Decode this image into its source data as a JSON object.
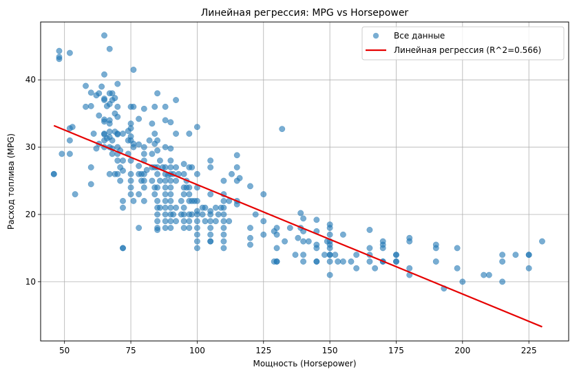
{
  "chart_data": {
    "type": "scatter",
    "title": "Линейная регрессия: MPG vs Horsepower",
    "xlabel": "Мощность (Horsepower)",
    "ylabel": "Расход топлива (MPG)",
    "xlim": [
      41,
      240
    ],
    "ylim": [
      1.2,
      48.6
    ],
    "xticks": [
      50,
      75,
      100,
      125,
      150,
      175,
      200,
      225
    ],
    "yticks": [
      10,
      20,
      30,
      40
    ],
    "grid": true,
    "legend_position": "top-right",
    "series": [
      {
        "name": "Все данные",
        "kind": "scatter",
        "color": "#1f77b4",
        "points": [
          [
            46,
            26
          ],
          [
            46,
            26
          ],
          [
            48,
            43.1
          ],
          [
            48,
            44.3
          ],
          [
            48,
            43.4
          ],
          [
            49,
            29
          ],
          [
            52,
            44
          ],
          [
            52,
            32.8
          ],
          [
            52,
            31
          ],
          [
            52,
            29
          ],
          [
            53,
            33
          ],
          [
            54,
            23
          ],
          [
            58,
            39.1
          ],
          [
            58,
            36
          ],
          [
            60,
            38.1
          ],
          [
            60,
            36.1
          ],
          [
            60,
            27
          ],
          [
            60,
            24.5
          ],
          [
            61,
            32
          ],
          [
            62,
            37.7
          ],
          [
            62,
            29.8
          ],
          [
            63,
            38
          ],
          [
            63,
            34.7
          ],
          [
            63,
            30.5
          ],
          [
            64,
            39
          ],
          [
            65,
            46.6
          ],
          [
            65,
            40.8
          ],
          [
            65,
            37.2
          ],
          [
            65,
            37
          ],
          [
            65,
            34.1
          ],
          [
            65,
            33.8
          ],
          [
            65,
            32
          ],
          [
            65,
            31.9
          ],
          [
            65,
            31
          ],
          [
            65,
            30
          ],
          [
            66,
            36.1
          ],
          [
            66,
            31.3
          ],
          [
            67,
            44.6
          ],
          [
            67,
            38
          ],
          [
            67,
            36.4
          ],
          [
            67,
            34
          ],
          [
            67,
            33.5
          ],
          [
            67,
            32.3
          ],
          [
            67,
            31.5
          ],
          [
            67,
            30
          ],
          [
            67,
            26
          ],
          [
            68,
            38
          ],
          [
            68,
            37
          ],
          [
            68,
            31
          ],
          [
            68,
            29.8
          ],
          [
            68,
            29
          ],
          [
            69,
            37.3
          ],
          [
            69,
            35
          ],
          [
            69,
            32.3
          ],
          [
            69,
            26
          ],
          [
            70,
            39.4
          ],
          [
            70,
            36
          ],
          [
            70,
            34.5
          ],
          [
            70,
            32
          ],
          [
            70,
            31.9
          ],
          [
            70,
            30
          ],
          [
            70,
            29
          ],
          [
            70,
            28
          ],
          [
            70,
            26
          ],
          [
            71,
            29.5
          ],
          [
            71,
            27
          ],
          [
            71,
            25
          ],
          [
            72,
            32
          ],
          [
            72,
            28
          ],
          [
            72,
            26.5
          ],
          [
            72,
            22
          ],
          [
            72,
            21
          ],
          [
            72,
            15
          ],
          [
            72,
            15
          ],
          [
            74,
            32.4
          ],
          [
            74,
            31
          ],
          [
            74,
            29
          ],
          [
            75,
            36
          ],
          [
            75,
            33.5
          ],
          [
            75,
            32.8
          ],
          [
            75,
            31.6
          ],
          [
            75,
            31
          ],
          [
            75,
            28
          ],
          [
            75,
            26
          ],
          [
            75,
            25
          ],
          [
            75,
            24
          ],
          [
            75,
            23
          ],
          [
            76,
            41.5
          ],
          [
            76,
            36
          ],
          [
            76,
            30.5
          ],
          [
            76,
            30
          ],
          [
            76,
            22
          ],
          [
            78,
            34.2
          ],
          [
            78,
            30.4
          ],
          [
            78,
            27.2
          ],
          [
            78,
            26
          ],
          [
            78,
            23
          ],
          [
            78,
            18
          ],
          [
            79,
            26
          ],
          [
            79,
            25
          ],
          [
            80,
            35.7
          ],
          [
            80,
            30
          ],
          [
            80,
            29
          ],
          [
            80,
            28
          ],
          [
            80,
            26
          ],
          [
            80,
            25
          ],
          [
            80,
            24
          ],
          [
            80,
            22
          ],
          [
            81,
            26.6
          ],
          [
            82,
            31
          ],
          [
            83,
            33.5
          ],
          [
            83,
            29
          ],
          [
            83,
            27
          ],
          [
            83,
            25
          ],
          [
            84,
            36
          ],
          [
            84,
            32
          ],
          [
            84,
            30.5
          ],
          [
            84,
            27
          ],
          [
            84,
            24
          ],
          [
            84,
            23
          ],
          [
            85,
            38
          ],
          [
            85,
            31
          ],
          [
            85,
            29.5
          ],
          [
            85,
            27
          ],
          [
            85,
            26
          ],
          [
            85,
            24
          ],
          [
            85,
            22
          ],
          [
            85,
            21
          ],
          [
            85,
            20
          ],
          [
            85,
            19
          ],
          [
            85,
            18
          ],
          [
            85,
            17.7
          ],
          [
            86,
            28
          ],
          [
            86,
            25
          ],
          [
            86,
            21
          ],
          [
            87,
            27
          ],
          [
            88,
            36
          ],
          [
            88,
            34
          ],
          [
            88,
            30
          ],
          [
            88,
            27
          ],
          [
            88,
            26
          ],
          [
            88,
            25
          ],
          [
            88,
            24
          ],
          [
            88,
            23
          ],
          [
            88,
            22
          ],
          [
            88,
            21
          ],
          [
            88,
            20
          ],
          [
            88,
            19
          ],
          [
            88,
            18
          ],
          [
            89,
            25.8
          ],
          [
            90,
            33.7
          ],
          [
            90,
            29.8
          ],
          [
            90,
            28
          ],
          [
            90,
            27
          ],
          [
            90,
            26
          ],
          [
            90,
            25
          ],
          [
            90,
            24
          ],
          [
            90,
            23
          ],
          [
            90,
            22
          ],
          [
            90,
            21
          ],
          [
            90,
            20
          ],
          [
            90,
            19
          ],
          [
            90,
            18
          ],
          [
            91,
            26
          ],
          [
            91,
            20
          ],
          [
            92,
            37
          ],
          [
            92,
            32
          ],
          [
            92,
            27
          ],
          [
            92,
            25
          ],
          [
            92,
            21
          ],
          [
            92,
            19
          ],
          [
            93,
            26
          ],
          [
            94,
            22
          ],
          [
            94,
            20
          ],
          [
            95,
            27.5
          ],
          [
            95,
            26
          ],
          [
            95,
            24
          ],
          [
            95,
            23
          ],
          [
            95,
            21
          ],
          [
            95,
            20
          ],
          [
            95,
            19
          ],
          [
            95,
            18
          ],
          [
            96,
            25
          ],
          [
            96,
            24
          ],
          [
            97,
            32
          ],
          [
            97,
            27
          ],
          [
            97,
            24
          ],
          [
            97,
            23
          ],
          [
            97,
            22
          ],
          [
            97,
            20
          ],
          [
            97,
            19
          ],
          [
            97,
            18
          ],
          [
            98,
            27
          ],
          [
            98,
            22
          ],
          [
            98,
            20
          ],
          [
            99,
            22
          ],
          [
            100,
            33
          ],
          [
            100,
            26
          ],
          [
            100,
            24
          ],
          [
            100,
            22
          ],
          [
            100,
            20.5
          ],
          [
            100,
            20
          ],
          [
            100,
            19
          ],
          [
            100,
            18
          ],
          [
            100,
            17
          ],
          [
            100,
            16
          ],
          [
            100,
            15
          ],
          [
            102,
            21
          ],
          [
            102,
            20
          ],
          [
            103,
            21
          ],
          [
            103,
            19
          ],
          [
            105,
            28
          ],
          [
            105,
            27
          ],
          [
            105,
            23
          ],
          [
            105,
            20.5
          ],
          [
            105,
            20
          ],
          [
            105,
            19
          ],
          [
            105,
            18
          ],
          [
            105,
            17
          ],
          [
            105,
            16
          ],
          [
            105,
            16
          ],
          [
            107,
            21
          ],
          [
            107,
            19
          ],
          [
            108,
            20
          ],
          [
            109,
            21
          ],
          [
            110,
            25
          ],
          [
            110,
            23
          ],
          [
            110,
            22
          ],
          [
            110,
            21
          ],
          [
            110,
            20
          ],
          [
            110,
            19
          ],
          [
            110,
            18
          ],
          [
            110,
            17
          ],
          [
            110,
            16
          ],
          [
            110,
            15
          ],
          [
            112,
            19
          ],
          [
            112,
            22
          ],
          [
            113,
            26
          ],
          [
            115,
            28.8
          ],
          [
            115,
            27
          ],
          [
            115,
            25
          ],
          [
            115,
            22
          ],
          [
            115,
            21.5
          ],
          [
            116,
            25.4
          ],
          [
            120,
            24.2
          ],
          [
            120,
            18
          ],
          [
            120,
            16.5
          ],
          [
            120,
            15.5
          ],
          [
            122,
            20
          ],
          [
            125,
            23
          ],
          [
            125,
            19
          ],
          [
            125,
            17
          ],
          [
            129,
            13
          ],
          [
            129,
            17.5
          ],
          [
            130,
            18
          ],
          [
            130,
            17
          ],
          [
            130,
            15
          ],
          [
            130,
            13
          ],
          [
            130,
            13
          ],
          [
            132,
            32.7
          ],
          [
            133,
            16
          ],
          [
            135,
            18
          ],
          [
            137,
            14
          ],
          [
            138,
            16.5
          ],
          [
            139,
            20.2
          ],
          [
            139,
            18
          ],
          [
            140,
            19.4
          ],
          [
            140,
            17.5
          ],
          [
            140,
            16
          ],
          [
            140,
            14
          ],
          [
            140,
            13
          ],
          [
            142,
            16
          ],
          [
            145,
            19.2
          ],
          [
            145,
            17.5
          ],
          [
            145,
            15.5
          ],
          [
            145,
            15
          ],
          [
            145,
            13
          ],
          [
            145,
            13
          ],
          [
            148,
            14
          ],
          [
            149,
            16
          ],
          [
            150,
            18.5
          ],
          [
            150,
            18
          ],
          [
            150,
            17
          ],
          [
            150,
            16
          ],
          [
            150,
            15.5
          ],
          [
            150,
            15
          ],
          [
            150,
            14
          ],
          [
            150,
            14
          ],
          [
            150,
            13
          ],
          [
            150,
            11
          ],
          [
            152,
            14
          ],
          [
            153,
            13
          ],
          [
            155,
            17
          ],
          [
            155,
            13
          ],
          [
            158,
            13
          ],
          [
            160,
            14
          ],
          [
            160,
            12
          ],
          [
            165,
            17.7
          ],
          [
            165,
            15
          ],
          [
            165,
            14
          ],
          [
            165,
            13
          ],
          [
            167,
            12
          ],
          [
            170,
            16
          ],
          [
            170,
            15.5
          ],
          [
            170,
            15
          ],
          [
            170,
            13
          ],
          [
            170,
            13
          ],
          [
            175,
            14
          ],
          [
            175,
            14
          ],
          [
            175,
            13
          ],
          [
            175,
            13
          ],
          [
            180,
            16.5
          ],
          [
            180,
            16
          ],
          [
            180,
            12
          ],
          [
            180,
            11
          ],
          [
            190,
            15.5
          ],
          [
            190,
            15
          ],
          [
            190,
            13
          ],
          [
            193,
            9
          ],
          [
            198,
            15
          ],
          [
            198,
            12
          ],
          [
            200,
            10
          ],
          [
            208,
            11
          ],
          [
            210,
            11
          ],
          [
            215,
            14
          ],
          [
            215,
            13
          ],
          [
            215,
            10
          ],
          [
            220,
            14
          ],
          [
            225,
            14
          ],
          [
            225,
            14
          ],
          [
            225,
            12
          ],
          [
            230,
            16
          ]
        ]
      },
      {
        "name": "Линейная регрессия (R^2=0.566)",
        "kind": "line",
        "color": "#e60000",
        "x": [
          46,
          230
        ],
        "y": [
          33.2,
          3.3
        ]
      }
    ]
  }
}
